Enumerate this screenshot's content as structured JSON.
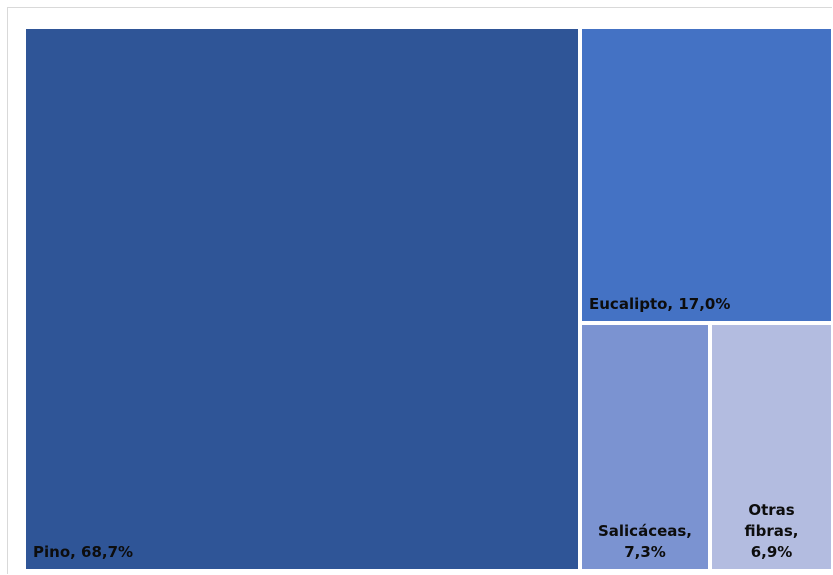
{
  "chart_data": {
    "type": "treemap",
    "title": "",
    "items": [
      {
        "label": "Pino",
        "value": 68.7,
        "value_label": "68,7%",
        "color": "#2f5597"
      },
      {
        "label": "Eucalipto",
        "value": 17.0,
        "value_label": "17,0%",
        "color": "#4472c4"
      },
      {
        "label": "Salicáceas",
        "value": 7.3,
        "value_label": "7,3%",
        "color": "#7b93d1"
      },
      {
        "label": "Otras fibras",
        "value": 6.9,
        "value_label": "6,9%",
        "color": "#b3bce0"
      }
    ],
    "label_format": "{label}, {value_label}",
    "tile_border_color": "#ffffff",
    "label_color": "#0d0d0d"
  }
}
